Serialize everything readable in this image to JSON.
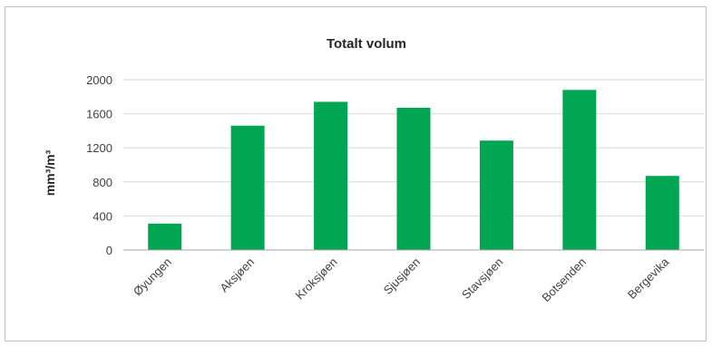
{
  "chart_data": {
    "type": "bar",
    "title": "Totalt volum",
    "xlabel": "",
    "ylabel": "mm³/m³",
    "categories": [
      "Øyungen",
      "Aksjøen",
      "Kroksjøen",
      "Sjusjøen",
      "Stavsjøen",
      "Botsenden",
      "Bergevika"
    ],
    "values": [
      310,
      1460,
      1740,
      1670,
      1285,
      1880,
      870
    ],
    "ylim": [
      0,
      2000
    ],
    "yticks": [
      0,
      400,
      800,
      1200,
      1600,
      2000
    ],
    "grid": true,
    "legend": "none",
    "bar_color": "#00a651",
    "grid_color": "#d9d9d9"
  }
}
